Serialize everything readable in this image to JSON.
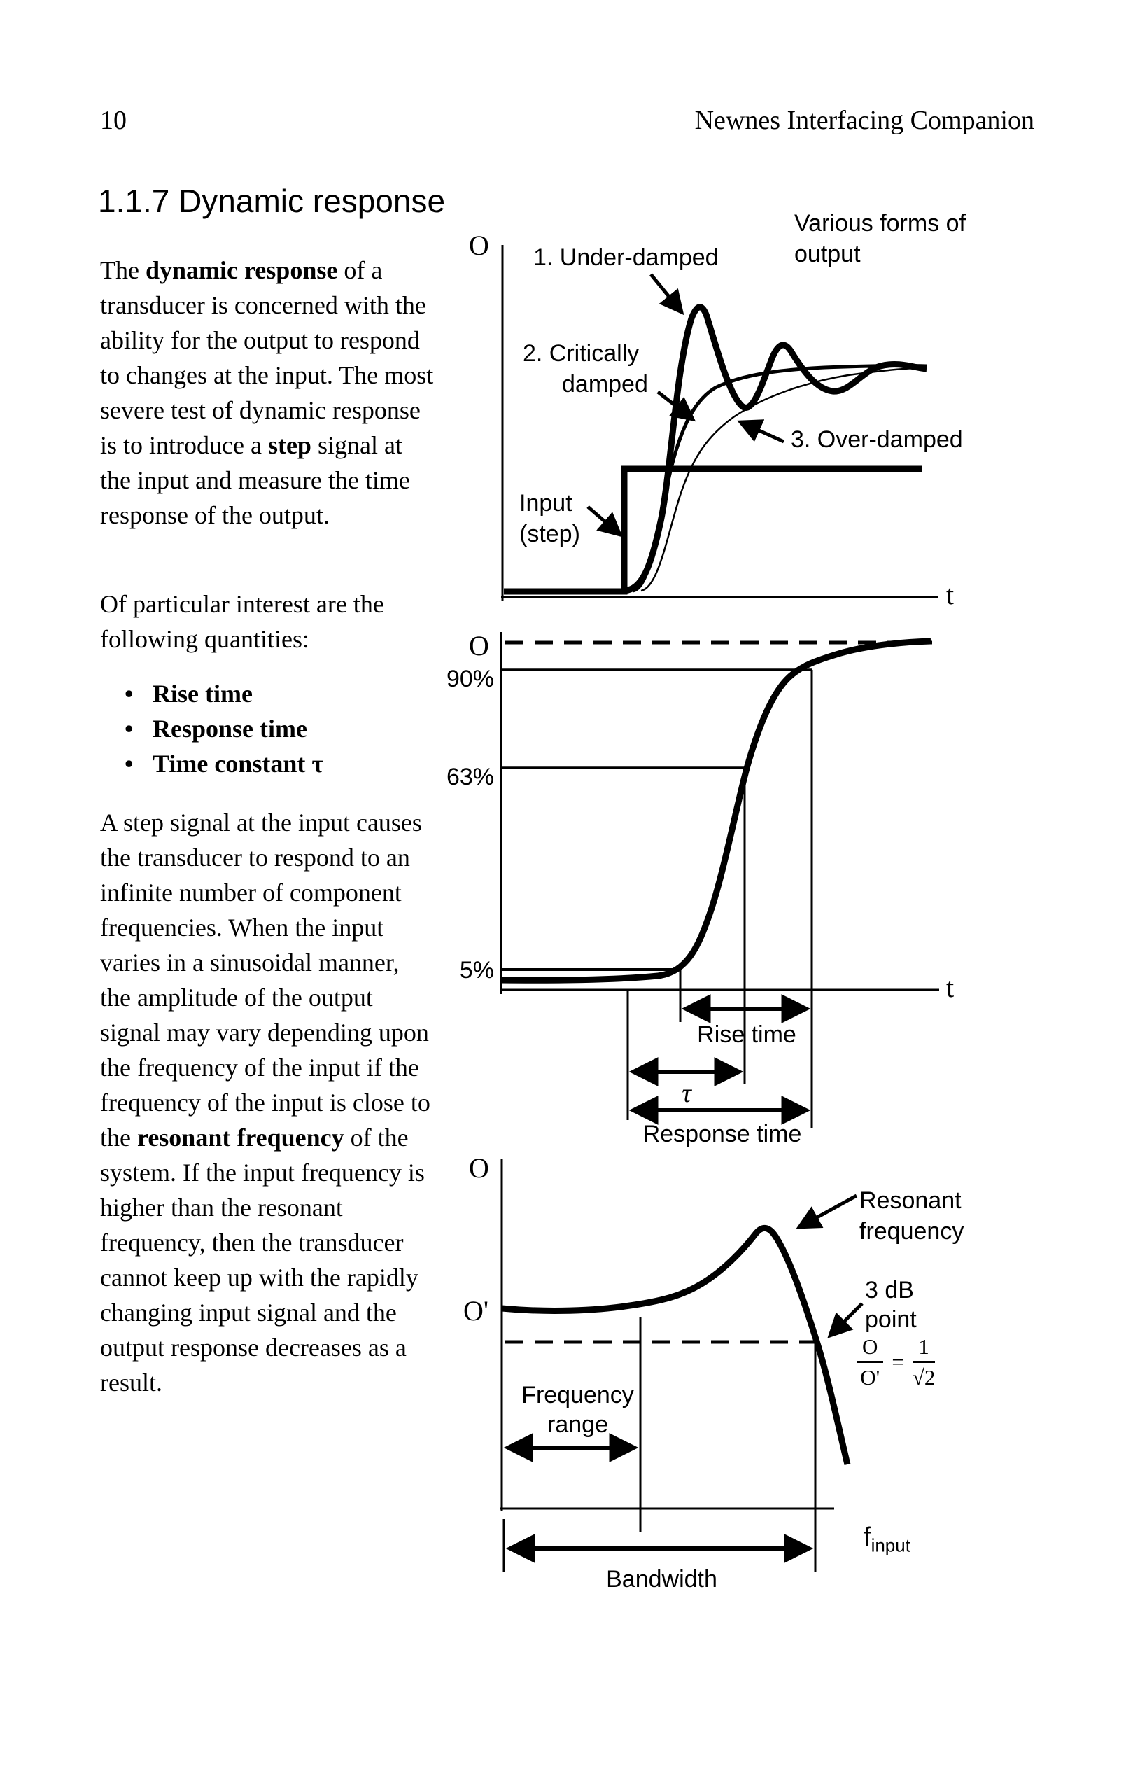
{
  "page": {
    "number": "10",
    "header_title": "Newnes Interfacing Companion",
    "section_title": "1.1.7 Dynamic response"
  },
  "content": {
    "para1": [
      {
        "t": "The ",
        "b": false
      },
      {
        "t": "dynamic response",
        "b": true
      },
      {
        "t": " of a transducer is concerned with the ability for the output to respond to changes at the input. The most severe test of dynamic response is to introduce a ",
        "b": false
      },
      {
        "t": "step",
        "b": true
      },
      {
        "t": " signal at the input and measure the time response of the output.",
        "b": false
      }
    ],
    "para2": [
      {
        "t": "Of particular interest are the following quantities:",
        "b": false
      }
    ],
    "bullet_glyph": "•",
    "bullets": [
      [
        {
          "t": "Rise time",
          "b": true
        }
      ],
      [
        {
          "t": "Response time",
          "b": true
        }
      ],
      [
        {
          "t": "Time constant ",
          "b": true
        },
        {
          "t": "τ",
          "b": false
        }
      ]
    ],
    "para3": [
      {
        "t": "A step signal at the input causes the transducer to respond to an infinite number of component frequencies. When the input varies in a sinusoidal manner, the amplitude of the output signal may vary depending upon the frequency of the input if the frequency of the input is close to the ",
        "b": false
      },
      {
        "t": "resonant frequency",
        "b": true
      },
      {
        "t": " of the system. If the input frequency is higher than the resonant frequency, then the transducer cannot keep up with the rapidly changing input signal and the output response decreases as a result.",
        "b": false
      }
    ]
  },
  "fig_step": {
    "title": "Various forms of output",
    "axis_y": "O",
    "axis_x": "t",
    "label_under": "1. Under-damped",
    "label_critical": "2. Critically damped",
    "label_over": "3. Over-damped",
    "label_input": "Input (step)"
  },
  "fig_resp": {
    "axis_y": "O",
    "axis_x": "t",
    "pct90": "90%",
    "pct63": "63%",
    "pct5": "5%",
    "rise": "Rise time",
    "tau": "τ",
    "response": "Response time"
  },
  "fig_freq": {
    "axis_y": "O",
    "level": "O'",
    "resonant": "Resonant frequency",
    "db3": "3 dB point",
    "range": "Frequency range",
    "bandwidth": "Bandwidth",
    "axis_x_base": "f",
    "axis_x_sub": "input",
    "formula": {
      "num1": "O",
      "den1": "O'",
      "eq": "=",
      "num2": "1",
      "den2": "√2"
    }
  },
  "chart_data": [
    {
      "type": "line",
      "title": "Various forms of output (response to step input)",
      "xlabel": "t",
      "ylabel": "O",
      "grid": false,
      "legend_position": "annotated on plot",
      "series": [
        {
          "name": "Input (step)",
          "points": [
            [
              0,
              0
            ],
            [
              0.28,
              0
            ],
            [
              0.28,
              0.55
            ],
            [
              1.0,
              0.55
            ]
          ]
        },
        {
          "name": "1. Under-damped",
          "points": [
            [
              0.28,
              0
            ],
            [
              0.34,
              0.45
            ],
            [
              0.39,
              0.92
            ],
            [
              0.45,
              0.6
            ],
            [
              0.51,
              0.79
            ],
            [
              0.57,
              0.66
            ],
            [
              0.63,
              0.75
            ],
            [
              0.72,
              0.72
            ],
            [
              1.0,
              0.73
            ]
          ]
        },
        {
          "name": "2. Critically damped",
          "points": [
            [
              0.3,
              0
            ],
            [
              0.37,
              0.4
            ],
            [
              0.44,
              0.64
            ],
            [
              0.55,
              0.7
            ],
            [
              0.7,
              0.72
            ],
            [
              1.0,
              0.73
            ]
          ]
        },
        {
          "name": "3. Over-damped",
          "points": [
            [
              0.32,
              0
            ],
            [
              0.41,
              0.32
            ],
            [
              0.5,
              0.56
            ],
            [
              0.62,
              0.66
            ],
            [
              0.82,
              0.71
            ],
            [
              1.0,
              0.72
            ]
          ]
        }
      ]
    },
    {
      "type": "line",
      "title": "Step response quantities (rise time, time constant, response time)",
      "xlabel": "t",
      "ylabel": "O",
      "grid": false,
      "reference_levels": [
        "90%",
        "63%",
        "5%"
      ],
      "annotations": [
        "Rise time spans 5% to 90% crossing",
        "τ spans step start to 63% crossing",
        "Response time spans step start to 90% crossing"
      ],
      "series": [
        {
          "name": "output",
          "points": [
            [
              0,
              0.02
            ],
            [
              0.29,
              0.03
            ],
            [
              0.41,
              0.05
            ],
            [
              0.48,
              0.28
            ],
            [
              0.56,
              0.63
            ],
            [
              0.62,
              0.78
            ],
            [
              0.71,
              0.9
            ],
            [
              0.84,
              0.97
            ],
            [
              1.0,
              1.0
            ]
          ]
        }
      ]
    },
    {
      "type": "line",
      "title": "Output amplitude vs input frequency (resonance)",
      "xlabel": "f_input",
      "ylabel": "O",
      "grid": false,
      "annotations": [
        "Resonant frequency at peak",
        "3 dB point where O/O' = 1/√2",
        "Frequency range",
        "Bandwidth"
      ],
      "series": [
        {
          "name": "output amplitude",
          "points": [
            [
              0,
              0.58
            ],
            [
              0.25,
              0.58
            ],
            [
              0.42,
              0.6
            ],
            [
              0.58,
              0.68
            ],
            [
              0.78,
              1.0
            ],
            [
              0.9,
              0.48
            ],
            [
              0.97,
              0.12
            ]
          ]
        }
      ]
    }
  ]
}
